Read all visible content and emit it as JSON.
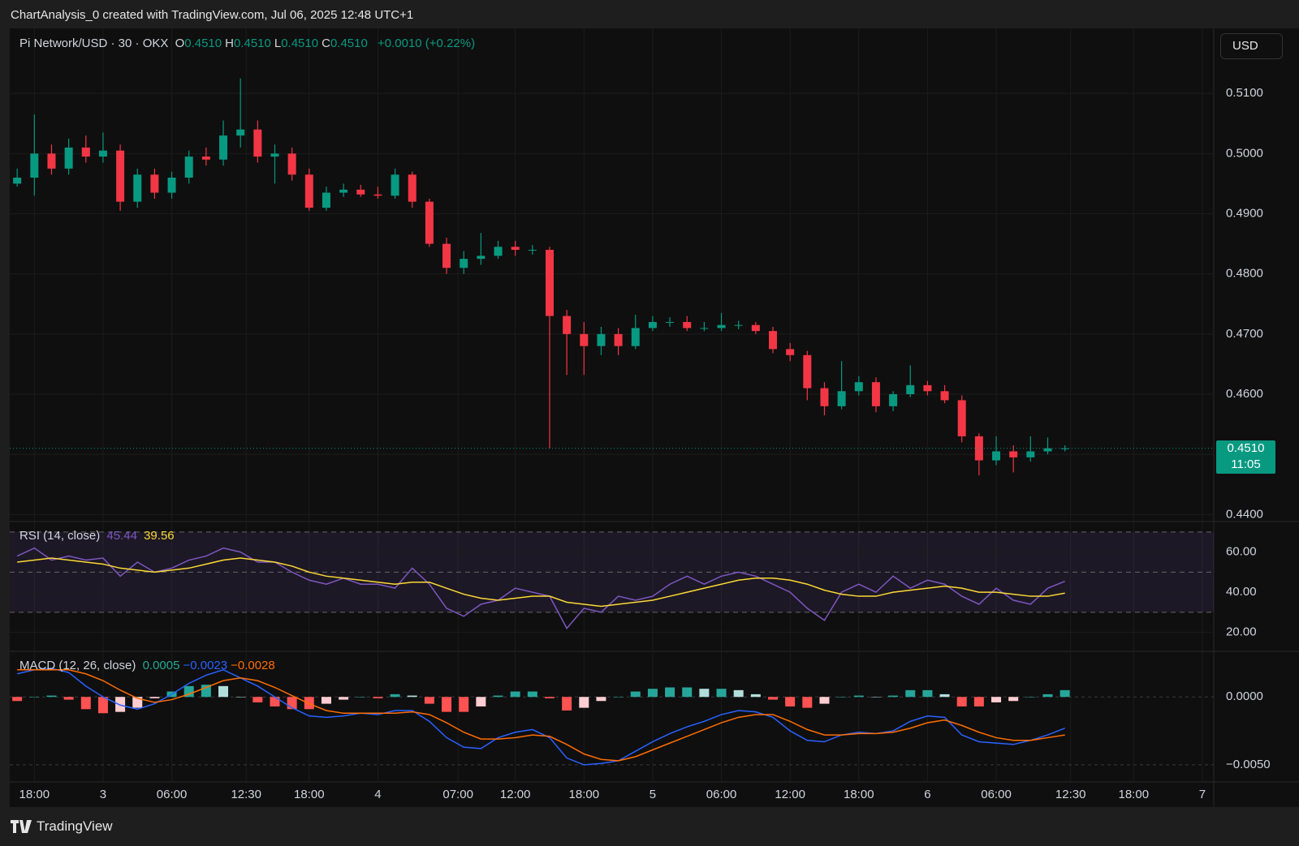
{
  "header": {
    "title": "ChartAnalysis_0 created with TradingView.com, Jul 06, 2025 12:48 UTC+1"
  },
  "footer": {
    "brand": "TradingView"
  },
  "chart_data": [
    {
      "type": "candlestick",
      "symbol": "Pi Network/USD · 30 · OKX",
      "ohlc_legend": [
        {
          "key": "O",
          "value": "0.4510"
        },
        {
          "key": "H",
          "value": "0.4510"
        },
        {
          "key": "L",
          "value": "0.4510"
        },
        {
          "key": "C",
          "value": "0.4510"
        }
      ],
      "change": "+0.0010 (+0.22%)",
      "currency": "USD",
      "x": [
        -3,
        0,
        3,
        6,
        9,
        12,
        15,
        18,
        21,
        24,
        27,
        30,
        33,
        36,
        39,
        42,
        45,
        48,
        51,
        54,
        57,
        60,
        63,
        66,
        69,
        72,
        75,
        78,
        81,
        84,
        87,
        90,
        93,
        96,
        99,
        102,
        105,
        108,
        111,
        114,
        117,
        120,
        123,
        126,
        129,
        132,
        135,
        138,
        141,
        144,
        147,
        150,
        153,
        156,
        159,
        162,
        165,
        168,
        171,
        174,
        177,
        180
      ],
      "open": [
        0.495,
        0.496,
        0.5,
        0.4975,
        0.501,
        0.4995,
        0.5005,
        0.492,
        0.4965,
        0.4935,
        0.496,
        0.4995,
        0.499,
        0.503,
        0.504,
        0.4995,
        0.5,
        0.4965,
        0.491,
        0.4935,
        0.494,
        0.4932,
        0.493,
        0.4965,
        0.492,
        0.485,
        0.481,
        0.4825,
        0.483,
        0.4845,
        0.484,
        0.484,
        0.473,
        0.47,
        0.468,
        0.47,
        0.468,
        0.471,
        0.472,
        0.472,
        0.471,
        0.471,
        0.4715,
        0.4715,
        0.4705,
        0.4675,
        0.4665,
        0.461,
        0.458,
        0.4605,
        0.462,
        0.458,
        0.46,
        0.4615,
        0.4605,
        0.459,
        0.453,
        0.449,
        0.4505,
        0.4495,
        0.4505,
        0.451
      ],
      "high": [
        0.4975,
        0.5065,
        0.5015,
        0.5025,
        0.503,
        0.5035,
        0.5015,
        0.4975,
        0.4975,
        0.497,
        0.5005,
        0.501,
        0.5055,
        0.5125,
        0.5055,
        0.5015,
        0.501,
        0.4975,
        0.4945,
        0.495,
        0.4948,
        0.4945,
        0.4975,
        0.497,
        0.4925,
        0.486,
        0.4838,
        0.4868,
        0.4855,
        0.4855,
        0.4848,
        0.4845,
        0.474,
        0.472,
        0.4712,
        0.471,
        0.4732,
        0.473,
        0.4728,
        0.473,
        0.472,
        0.4735,
        0.4722,
        0.472,
        0.4712,
        0.4685,
        0.4672,
        0.462,
        0.4655,
        0.463,
        0.4628,
        0.4605,
        0.4648,
        0.4622,
        0.4615,
        0.4598,
        0.4535,
        0.453,
        0.4515,
        0.453,
        0.4528,
        0.4515
      ],
      "low": [
        0.4945,
        0.493,
        0.4965,
        0.4965,
        0.4985,
        0.4985,
        0.4905,
        0.491,
        0.4925,
        0.4925,
        0.495,
        0.498,
        0.498,
        0.501,
        0.4985,
        0.495,
        0.4955,
        0.4905,
        0.4905,
        0.4928,
        0.4928,
        0.4925,
        0.4925,
        0.491,
        0.4845,
        0.48,
        0.48,
        0.4815,
        0.4825,
        0.483,
        0.4832,
        0.451,
        0.4632,
        0.4632,
        0.4665,
        0.4665,
        0.4675,
        0.4705,
        0.4712,
        0.4705,
        0.4705,
        0.4705,
        0.4708,
        0.47,
        0.4668,
        0.4655,
        0.459,
        0.4565,
        0.4575,
        0.4598,
        0.457,
        0.4572,
        0.4595,
        0.4598,
        0.4585,
        0.452,
        0.4465,
        0.4482,
        0.447,
        0.4488,
        0.45,
        0.4505
      ],
      "close": [
        0.496,
        0.5,
        0.4975,
        0.501,
        0.4995,
        0.5005,
        0.492,
        0.4965,
        0.4935,
        0.496,
        0.4995,
        0.499,
        0.503,
        0.504,
        0.4995,
        0.5,
        0.4965,
        0.491,
        0.4935,
        0.494,
        0.4932,
        0.493,
        0.4965,
        0.492,
        0.485,
        0.481,
        0.4825,
        0.483,
        0.4845,
        0.484,
        0.484,
        0.473,
        0.47,
        0.468,
        0.47,
        0.468,
        0.471,
        0.472,
        0.472,
        0.471,
        0.471,
        0.4715,
        0.4715,
        0.4705,
        0.4675,
        0.4665,
        0.461,
        0.458,
        0.4605,
        0.462,
        0.458,
        0.46,
        0.4615,
        0.4605,
        0.459,
        0.453,
        0.449,
        0.4505,
        0.4495,
        0.4505,
        0.451,
        0.451
      ],
      "colors": {
        "up": "#089981",
        "down": "#f23645"
      },
      "xlim": [
        -4.3,
        206
      ],
      "xticks": [
        {
          "value": 0,
          "label": "18:00"
        },
        {
          "value": 12,
          "label": "3"
        },
        {
          "value": 24,
          "label": "06:00"
        },
        {
          "value": 37,
          "label": "12:30"
        },
        {
          "value": 48,
          "label": "18:00"
        },
        {
          "value": 60,
          "label": "4"
        },
        {
          "value": 74,
          "label": "07:00"
        },
        {
          "value": 84,
          "label": "12:00"
        },
        {
          "value": 96,
          "label": "18:00"
        },
        {
          "value": 108,
          "label": "5"
        },
        {
          "value": 120,
          "label": "06:00"
        },
        {
          "value": 132,
          "label": "12:00"
        },
        {
          "value": 144,
          "label": "18:00"
        },
        {
          "value": 156,
          "label": "6"
        },
        {
          "value": 168,
          "label": "06:00"
        },
        {
          "value": 181,
          "label": "12:30"
        },
        {
          "value": 192,
          "label": "18:00"
        },
        {
          "value": 204,
          "label": "7"
        }
      ],
      "ylim": [
        0.4391,
        0.52
      ],
      "yticks": [
        {
          "value": 0.44,
          "label": "0.4400"
        },
        {
          "value": 0.45,
          "label": "0.4500"
        },
        {
          "value": 0.46,
          "label": "0.4600"
        },
        {
          "value": 0.47,
          "label": "0.4700"
        },
        {
          "value": 0.48,
          "label": "0.4800"
        },
        {
          "value": 0.49,
          "label": "0.4900"
        },
        {
          "value": 0.5,
          "label": "0.5000"
        },
        {
          "value": 0.51,
          "label": "0.5100"
        }
      ],
      "grid": true,
      "last_price": {
        "value": 0.451,
        "label": "0.4510",
        "countdown": "11:05"
      }
    },
    {
      "type": "line",
      "title": "RSI (14, close)",
      "series": [
        {
          "color": "#7e57c2",
          "values": [
            58,
            62,
            56,
            58,
            56,
            57,
            48,
            55,
            50,
            52,
            56,
            58,
            62,
            60,
            55,
            55,
            50,
            46,
            44,
            47,
            44,
            44,
            42,
            52,
            44,
            32,
            28,
            34,
            36,
            42,
            40,
            38,
            22,
            32,
            30,
            38,
            36,
            38,
            44,
            48,
            44,
            48,
            50,
            48,
            44,
            40,
            32,
            26,
            40,
            44,
            40,
            48,
            42,
            46,
            44,
            38,
            34,
            42,
            36,
            34,
            42,
            45.44
          ]
        },
        {
          "color": "#fdd835",
          "values": [
            55,
            56,
            57,
            56,
            55,
            54,
            52,
            51,
            50,
            51,
            52,
            54,
            56,
            57,
            56,
            55,
            53,
            50,
            48,
            47,
            46,
            45,
            44,
            45,
            45,
            42,
            39,
            37,
            36,
            37,
            38,
            38,
            35,
            34,
            33,
            34,
            35,
            36,
            38,
            40,
            42,
            44,
            46,
            47,
            47,
            46,
            44,
            41,
            39,
            38,
            38,
            40,
            41,
            42,
            43,
            42,
            40,
            40,
            39,
            38,
            38,
            39.56
          ]
        }
      ],
      "bands": [
        70,
        50,
        30
      ],
      "band_color": "rgba(126,87,194,0.12)",
      "ylim": [
        11.35,
        74.4
      ],
      "yticks": [
        {
          "value": 20,
          "label": "20.00"
        },
        {
          "value": 40,
          "label": "40.00"
        },
        {
          "value": 60,
          "label": "60.00"
        }
      ]
    },
    {
      "type": "macd",
      "title": "MACD (12, 26, close)",
      "legend": [
        {
          "value": "0.0005",
          "color": "#22ab94"
        },
        {
          "value": "−0.0023",
          "color": "#2962ff"
        },
        {
          "value": "−0.0028",
          "color": "#ff6d00"
        }
      ],
      "histogram": {
        "values": [
          -0.0003,
          0,
          0.0001,
          -0.0002,
          -0.0009,
          -0.0012,
          -0.0011,
          -0.0008,
          -0.0001,
          0.0004,
          0.0008,
          0.0009,
          0.0008,
          0,
          -0.0004,
          -0.0007,
          -0.0009,
          -0.0009,
          -0.0005,
          -0.0002,
          0,
          -0.0001,
          0.0002,
          0.0001,
          -0.0005,
          -0.0011,
          -0.0011,
          -0.0007,
          0.0001,
          0.0004,
          0.0004,
          -0.0001,
          -0.001,
          -0.0008,
          -0.0003,
          0,
          0.0004,
          0.0006,
          0.0007,
          0.0007,
          0.0006,
          0.0006,
          0.0005,
          0.0002,
          -0.0002,
          -0.0007,
          -0.0008,
          -0.0005,
          0,
          0.0001,
          0,
          0.0001,
          0.0005,
          0.0005,
          0.0002,
          -0.0007,
          -0.0007,
          -0.0004,
          -0.0003,
          0,
          0.0002,
          0.0005
        ],
        "colors": {
          "rising_above": "#26a69a",
          "falling_above": "#b2dfdb",
          "falling_below": "#ff5252",
          "rising_below": "#ffcdd2"
        }
      },
      "series": [
        {
          "color": "#2962ff",
          "values": [
            0.0017,
            0.002,
            0.0021,
            0.0018,
            0.0008,
            0.0,
            -0.0006,
            -0.0009,
            -0.0005,
            0.0002,
            0.001,
            0.0016,
            0.002,
            0.0014,
            0.0008,
            0.0,
            -0.0008,
            -0.0014,
            -0.0015,
            -0.0014,
            -0.0012,
            -0.0013,
            -0.001,
            -0.001,
            -0.0018,
            -0.003,
            -0.0037,
            -0.0038,
            -0.003,
            -0.0026,
            -0.0024,
            -0.003,
            -0.0045,
            -0.005,
            -0.0049,
            -0.0047,
            -0.004,
            -0.0033,
            -0.0027,
            -0.0022,
            -0.0018,
            -0.0013,
            -0.001,
            -0.0011,
            -0.0015,
            -0.0025,
            -0.0032,
            -0.0033,
            -0.0028,
            -0.0026,
            -0.0027,
            -0.0025,
            -0.0018,
            -0.0014,
            -0.0015,
            -0.0028,
            -0.0033,
            -0.0034,
            -0.0035,
            -0.0032,
            -0.0028,
            -0.0023
          ]
        },
        {
          "color": "#ff6d00",
          "values": [
            0.002,
            0.002,
            0.002,
            0.002,
            0.0017,
            0.0012,
            0.0005,
            -0.0001,
            -0.0004,
            -0.0002,
            0.0002,
            0.0007,
            0.0012,
            0.0014,
            0.0012,
            0.0007,
            0.0001,
            -0.0005,
            -0.001,
            -0.0012,
            -0.0012,
            -0.0012,
            -0.0012,
            -0.0011,
            -0.0013,
            -0.0019,
            -0.0026,
            -0.0031,
            -0.0031,
            -0.003,
            -0.0028,
            -0.0029,
            -0.0035,
            -0.0042,
            -0.0046,
            -0.0047,
            -0.0044,
            -0.0039,
            -0.0034,
            -0.0029,
            -0.0024,
            -0.0019,
            -0.0015,
            -0.0013,
            -0.0013,
            -0.0018,
            -0.0024,
            -0.0028,
            -0.0028,
            -0.0027,
            -0.0027,
            -0.0026,
            -0.0023,
            -0.0019,
            -0.0017,
            -0.0021,
            -0.0026,
            -0.003,
            -0.0032,
            -0.0032,
            -0.003,
            -0.0028
          ]
        }
      ],
      "ylim": [
        -0.00626,
        0.00318
      ],
      "yticks": [
        {
          "value": 0,
          "label": "0.0000"
        },
        {
          "value": -0.005,
          "label": "−0.0050"
        }
      ]
    }
  ]
}
